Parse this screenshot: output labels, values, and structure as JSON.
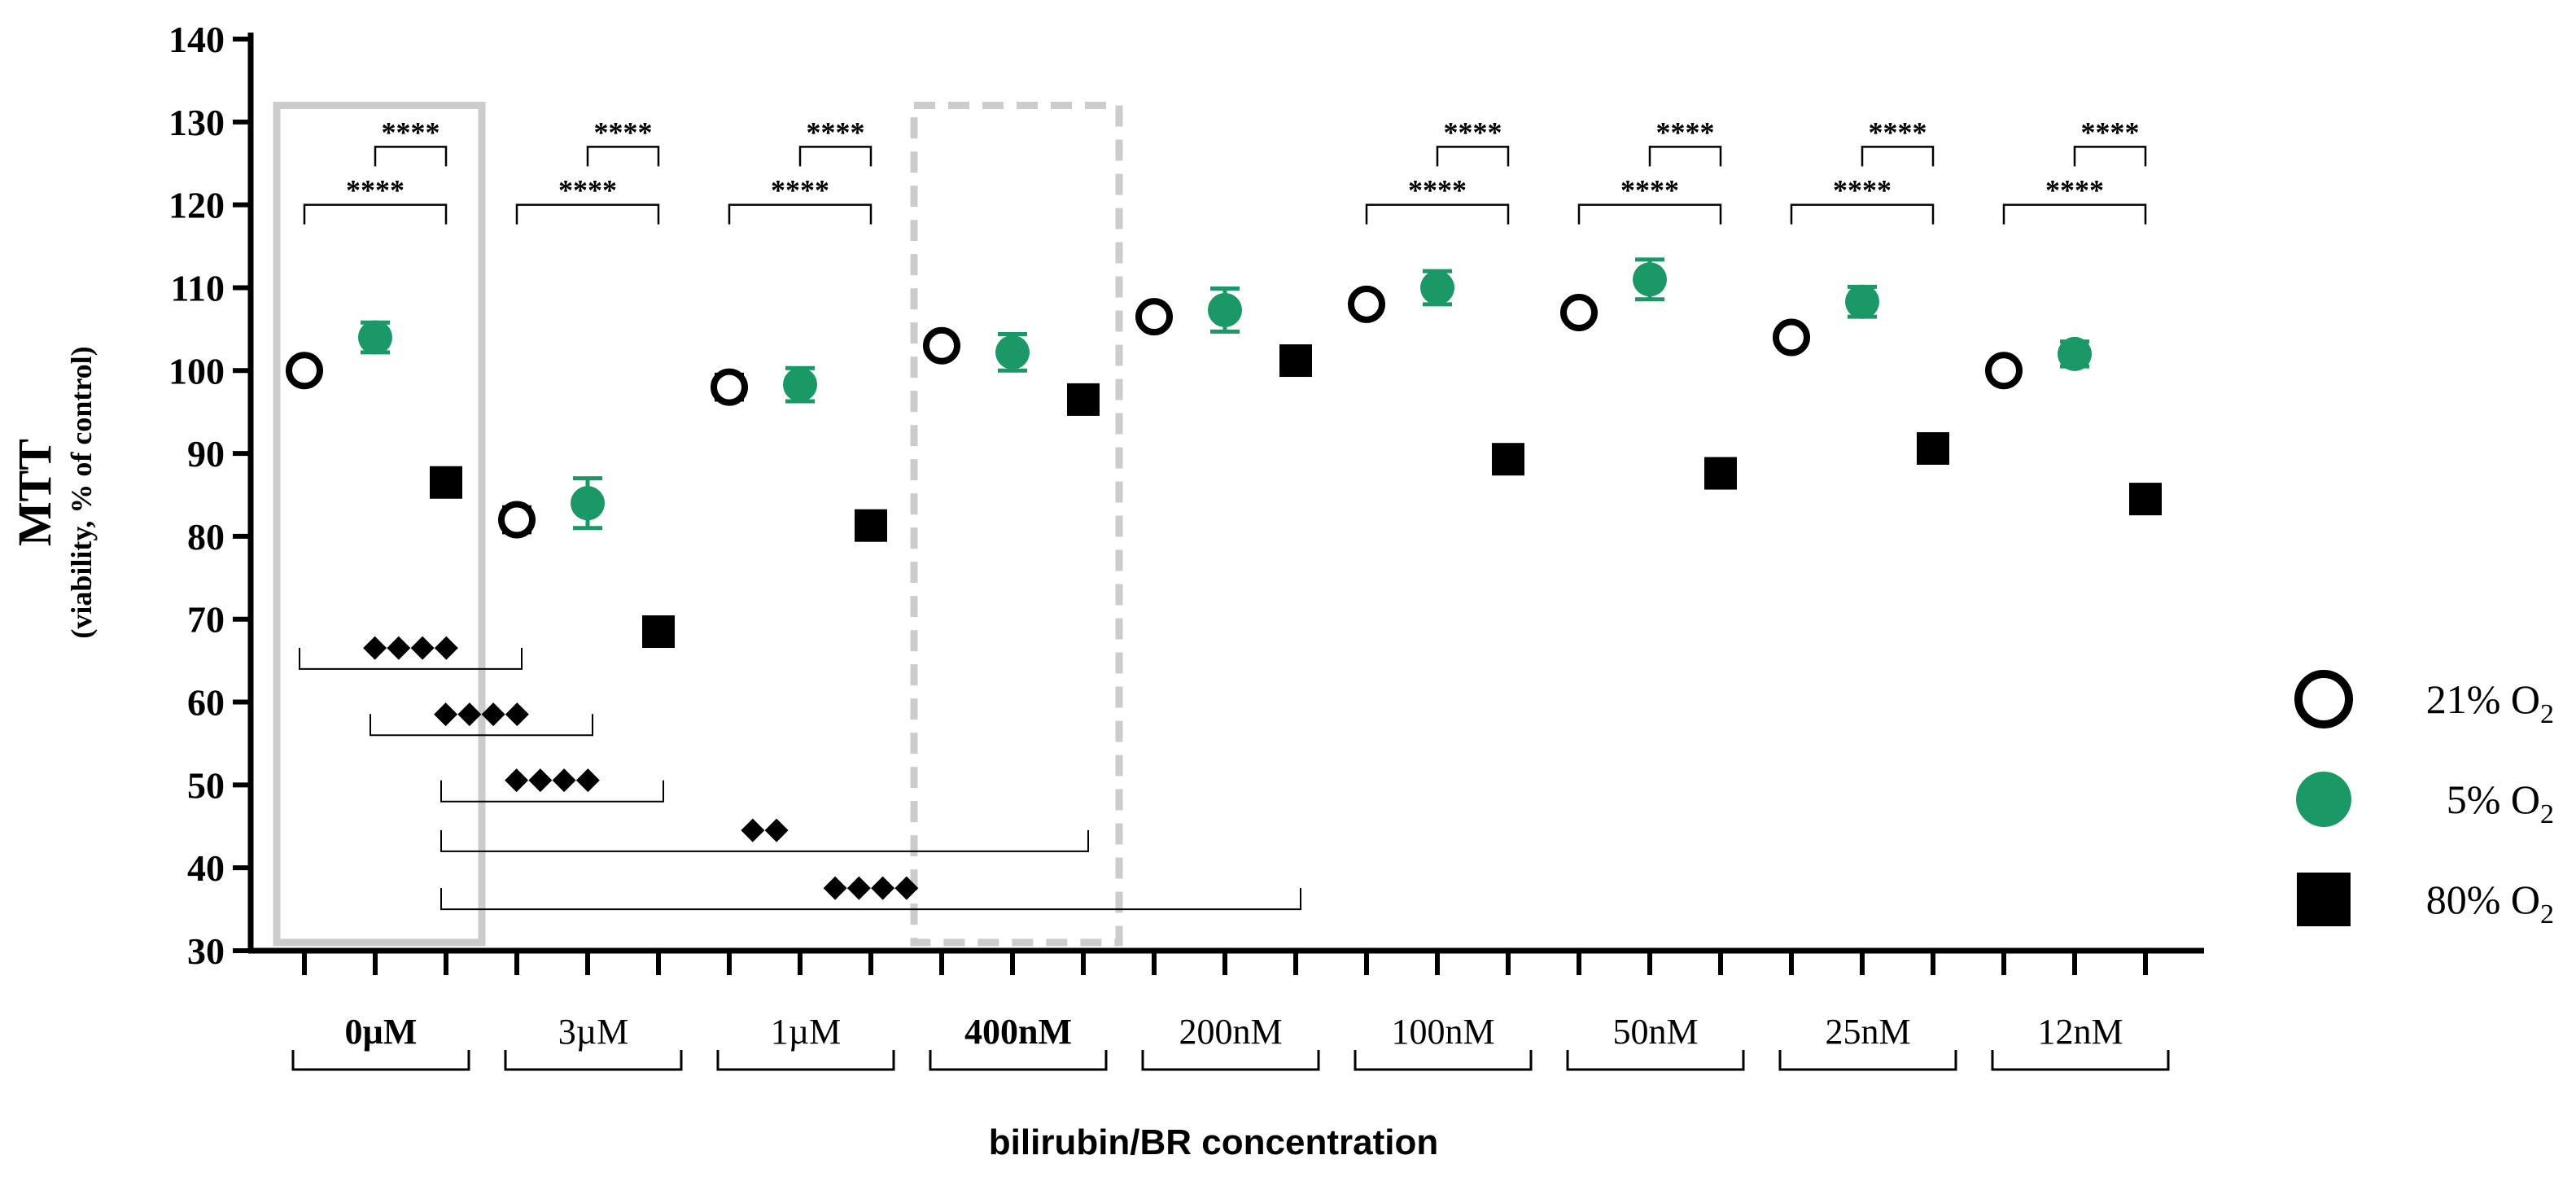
{
  "chart_data": {
    "type": "scatter",
    "title": "",
    "ylabel": "MTT",
    "ylabel_sub": "(viability, % of control)",
    "xlabel": "bilirubin/BR concentration",
    "ylim": [
      30,
      140
    ],
    "yticks": [
      "30",
      "40",
      "50",
      "60",
      "70",
      "80",
      "90",
      "100",
      "110",
      "120",
      "130",
      "140"
    ],
    "grid": false,
    "legend_position": "right",
    "categories": [
      "0µM",
      "3µM",
      "1µM",
      "400nM",
      "200nM",
      "100nM",
      "50nM",
      "25nM",
      "12nM"
    ],
    "bold_categories": [
      "0µM",
      "400nM"
    ],
    "highlighted_categories": [
      {
        "category": "0µM",
        "style": "solid"
      },
      {
        "category": "400nM",
        "style": "dashed"
      }
    ],
    "series": [
      {
        "name": "21% O2",
        "name_main": "21% O",
        "name_sub": "2",
        "marker": "open-circle",
        "color": "#000000",
        "values": [
          100,
          82,
          98,
          103,
          106.5,
          108,
          107,
          104,
          100
        ],
        "errors": [
          0,
          1.5,
          1.5,
          0,
          0,
          0,
          0,
          0,
          0
        ]
      },
      {
        "name": "5% O2",
        "name_main": "5% O",
        "name_sub": "2",
        "marker": "filled-circle",
        "color": "#1a9966",
        "values": [
          104,
          84,
          98.3,
          102.2,
          107.3,
          110,
          111,
          108.3,
          102
        ],
        "errors": [
          1.8,
          3,
          2,
          2.2,
          2.6,
          2,
          2.4,
          1.8,
          1.5
        ]
      },
      {
        "name": "80% O2",
        "name_main": "80% O",
        "name_sub": "2",
        "marker": "filled-square",
        "color": "#000000",
        "values": [
          86.5,
          68.5,
          81.3,
          96.5,
          101.2,
          89.3,
          87.6,
          90.6,
          84.5
        ],
        "errors": [
          0,
          0,
          0,
          0,
          0,
          0,
          0,
          0,
          0
        ]
      }
    ],
    "significance_within_group": [
      {
        "category": "0µM",
        "pairs": [
          {
            "from_series": 1,
            "to_series": 2,
            "label": "****",
            "y": 127
          },
          {
            "from_series": 0,
            "to_series": 2,
            "label": "****",
            "y": 120
          }
        ]
      },
      {
        "category": "3µM",
        "pairs": [
          {
            "from_series": 1,
            "to_series": 2,
            "label": "****",
            "y": 127
          },
          {
            "from_series": 0,
            "to_series": 2,
            "label": "****",
            "y": 120
          }
        ]
      },
      {
        "category": "1µM",
        "pairs": [
          {
            "from_series": 1,
            "to_series": 2,
            "label": "****",
            "y": 127
          },
          {
            "from_series": 0,
            "to_series": 2,
            "label": "****",
            "y": 120
          }
        ]
      },
      {
        "category": "100nM",
        "pairs": [
          {
            "from_series": 1,
            "to_series": 2,
            "label": "****",
            "y": 127
          },
          {
            "from_series": 0,
            "to_series": 2,
            "label": "****",
            "y": 120
          }
        ]
      },
      {
        "category": "50nM",
        "pairs": [
          {
            "from_series": 1,
            "to_series": 2,
            "label": "****",
            "y": 127
          },
          {
            "from_series": 0,
            "to_series": 2,
            "label": "****",
            "y": 120
          }
        ]
      },
      {
        "category": "25nM",
        "pairs": [
          {
            "from_series": 1,
            "to_series": 2,
            "label": "****",
            "y": 127
          },
          {
            "from_series": 0,
            "to_series": 2,
            "label": "****",
            "y": 120
          }
        ]
      },
      {
        "category": "12nM",
        "pairs": [
          {
            "from_series": 1,
            "to_series": 2,
            "label": "****",
            "y": 127
          },
          {
            "from_series": 0,
            "to_series": 2,
            "label": "****",
            "y": 120
          }
        ]
      }
    ],
    "significance_between_groups": [
      {
        "from": "0µM/21% O2",
        "to": "3µM/21% O2",
        "label": "◆◆◆◆",
        "y": 64
      },
      {
        "from": "0µM/5% O2",
        "to": "3µM/5% O2",
        "label": "◆◆◆◆",
        "y": 56
      },
      {
        "from": "0µM/80% O2",
        "to": "3µM/80% O2",
        "label": "◆◆◆◆",
        "y": 48
      },
      {
        "from": "0µM/80% O2",
        "to": "400nM/80% O2",
        "label": "◆◆",
        "y": 42
      },
      {
        "from": "0µM/80% O2",
        "to": "200nM/80% O2",
        "label": "◆◆◆◆",
        "y": 35
      }
    ]
  }
}
